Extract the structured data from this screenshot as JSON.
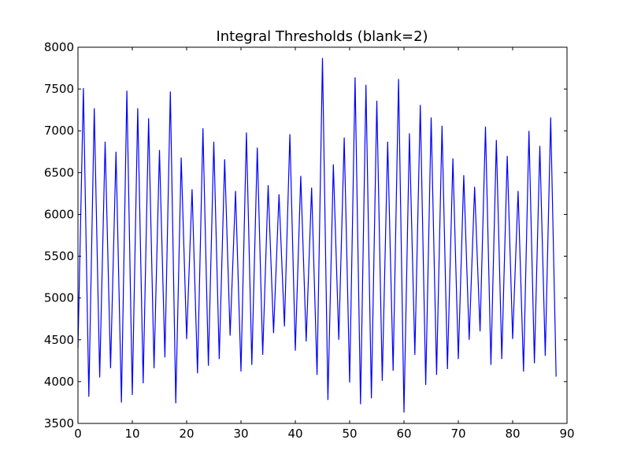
{
  "chart_data": {
    "type": "line",
    "title": "Integral Thresholds (blank=2)",
    "xlabel": "",
    "ylabel": "",
    "xlim": [
      0,
      90
    ],
    "ylim": [
      3500,
      8000
    ],
    "xticks": [
      0,
      10,
      20,
      30,
      40,
      50,
      60,
      70,
      80,
      90
    ],
    "yticks": [
      3500,
      4000,
      4500,
      5000,
      5500,
      6000,
      6500,
      7000,
      7500,
      8000
    ],
    "grid": false,
    "legend": "none",
    "series": [
      {
        "color": "#0000ff",
        "x": [
          0,
          1,
          2,
          3,
          4,
          5,
          6,
          7,
          8,
          9,
          10,
          11,
          12,
          13,
          14,
          15,
          16,
          17,
          18,
          19,
          20,
          21,
          22,
          23,
          24,
          25,
          26,
          27,
          28,
          29,
          30,
          31,
          32,
          33,
          34,
          35,
          36,
          37,
          38,
          39,
          40,
          41,
          42,
          43,
          44,
          45,
          46,
          47,
          48,
          49,
          50,
          51,
          52,
          53,
          54,
          55,
          56,
          57,
          58,
          59,
          60,
          61,
          62,
          63,
          64,
          65,
          66,
          67,
          68,
          69,
          70,
          71,
          72,
          73,
          74,
          75,
          76,
          77,
          78,
          79,
          80,
          81,
          82,
          83,
          84,
          85,
          86,
          87,
          88
        ],
        "y": [
          4400,
          7510,
          3820,
          7270,
          4050,
          6870,
          4160,
          6750,
          3750,
          7480,
          3840,
          7270,
          3980,
          7150,
          4160,
          6770,
          4290,
          7470,
          3740,
          6680,
          4510,
          6300,
          4100,
          7030,
          4190,
          6870,
          4270,
          6660,
          4550,
          6280,
          4120,
          6980,
          4200,
          6800,
          4320,
          6350,
          4580,
          6240,
          4660,
          6960,
          4370,
          6460,
          4480,
          6320,
          4080,
          7870,
          3780,
          6600,
          4500,
          6920,
          3990,
          7640,
          3730,
          7550,
          3800,
          7360,
          4010,
          6870,
          4130,
          7620,
          3630,
          6970,
          4320,
          7310,
          3960,
          7160,
          4080,
          7060,
          4150,
          6670,
          4270,
          6470,
          4500,
          6330,
          4600,
          7050,
          4200,
          6890,
          4270,
          6700,
          4510,
          6280,
          4120,
          7000,
          4220,
          6820,
          4310,
          7160,
          4060
        ]
      }
    ]
  }
}
